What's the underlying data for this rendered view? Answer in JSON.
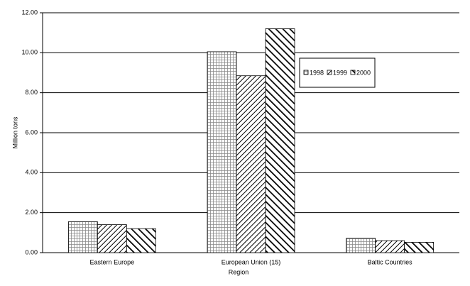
{
  "chart_data": {
    "type": "bar",
    "x_label": "Region",
    "y_label": "Million tons",
    "categories": [
      "Eastern Europe",
      "European Union (15)",
      "Baltic Countries"
    ],
    "series": [
      {
        "name": "1998",
        "color": "#000000",
        "pattern": "grid",
        "values": [
          1.55,
          10.05,
          0.72
        ]
      },
      {
        "name": "1999",
        "color": "#000000",
        "pattern": "hatch-narrow",
        "values": [
          1.4,
          8.85,
          0.6
        ]
      },
      {
        "name": "2000",
        "color": "#000000",
        "pattern": "hatch-wide",
        "values": [
          1.2,
          11.2,
          0.52
        ]
      }
    ],
    "ylim": [
      0,
      12
    ],
    "yticks": [
      {
        "value": 0,
        "label": "0.00"
      },
      {
        "value": 2,
        "label": "2.00"
      },
      {
        "value": 4,
        "label": "4.00"
      },
      {
        "value": 6,
        "label": "6.00"
      },
      {
        "value": 8,
        "label": "8.00"
      },
      {
        "value": 10,
        "label": "10.00"
      },
      {
        "value": 12,
        "label": "12.00"
      }
    ],
    "grid": true
  }
}
